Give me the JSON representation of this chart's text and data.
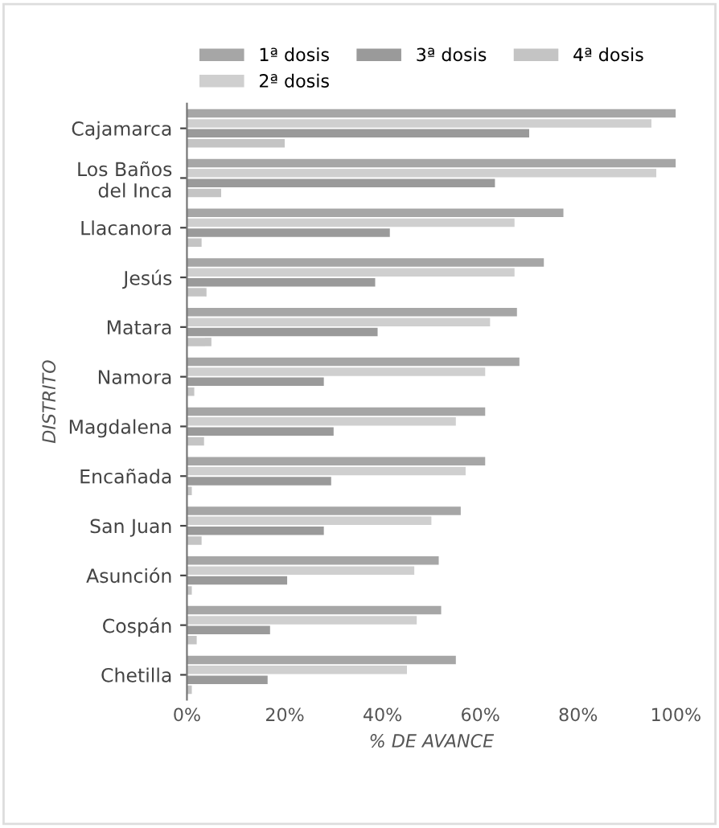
{
  "chart_data": {
    "type": "bar",
    "orientation": "horizontal",
    "xlabel": "% DE AVANCE",
    "ylabel": "DISTRITO",
    "categories": [
      "Cajamarca",
      "Los Baños\ndel Inca",
      "Llacanora",
      "Jesús",
      "Matara",
      "Namora",
      "Magdalena",
      "Encañada",
      "San Juan",
      "Asunción",
      "Cospán",
      "Chetilla"
    ],
    "series": [
      {
        "name": "1ª dosis",
        "color": "#a6a6a6",
        "values": [
          100,
          100,
          77,
          73,
          67.5,
          68,
          61,
          61,
          56,
          51.5,
          52,
          55
        ]
      },
      {
        "name": "2ª dosis",
        "color": "#cfcfcf",
        "values": [
          95,
          96,
          67,
          67,
          62,
          61,
          55,
          57,
          50,
          46.5,
          47,
          45
        ]
      },
      {
        "name": "3ª dosis",
        "color": "#9a9a9a",
        "values": [
          70,
          63,
          41.5,
          38.5,
          39,
          28,
          30,
          29.5,
          28,
          20.5,
          17,
          16.5
        ]
      },
      {
        "name": "4ª dosis",
        "color": "#c4c4c4",
        "values": [
          20,
          7,
          3,
          4,
          5,
          1.5,
          3.5,
          1,
          3,
          1,
          2,
          1
        ]
      }
    ],
    "xlim": [
      0,
      100
    ],
    "xticks": [
      {
        "value": 0,
        "label": "0%"
      },
      {
        "value": 20,
        "label": "20%"
      },
      {
        "value": 40,
        "label": "40%"
      },
      {
        "value": 60,
        "label": "60%"
      },
      {
        "value": 80,
        "label": "80%"
      },
      {
        "value": 100,
        "label": "100%"
      }
    ],
    "legend": "top left",
    "grid": false
  }
}
